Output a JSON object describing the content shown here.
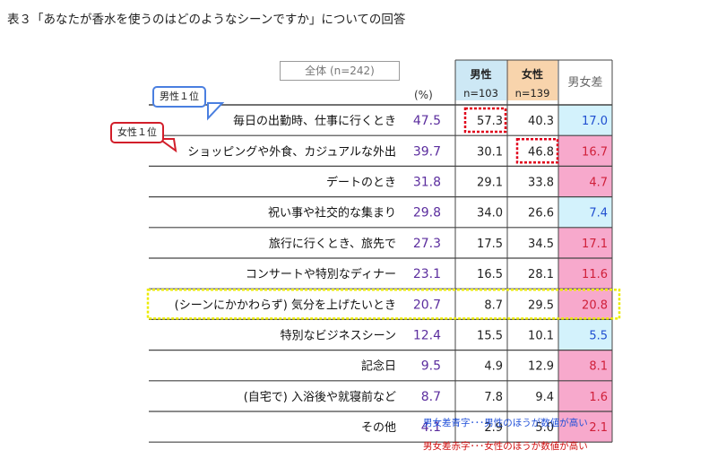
{
  "title": "表３「あなたが香水を使うのはどのようなシーンですか」についての回答",
  "overall_label": "全体 (n=242)",
  "pct_unit": "(%)",
  "headers": {
    "male": {
      "label": "男性",
      "n": "n=103"
    },
    "female": {
      "label": "女性",
      "n": "n=139"
    },
    "diff": {
      "label": "男女差"
    }
  },
  "callouts": {
    "male_top": "男性１位",
    "female_top": "女性１位"
  },
  "notes": {
    "blue": "男女差青字･･･男性のほうが数値が高い",
    "red": "男女差赤字･･･女性のほうが数値が高い"
  },
  "colors": {
    "male_header": "#cde8f5",
    "female_header": "#f8d4ac",
    "diff_male_bg": "#d3f2fc",
    "diff_female_bg": "#f7a9cc",
    "overall_text": "#5b2d9e",
    "highlight_dotted_red": "#e0001a",
    "highlight_dotted_yellow": "#ecec00"
  },
  "chart_data": {
    "type": "table",
    "columns": [
      "全体",
      "男性",
      "女性",
      "男女差"
    ],
    "rows": [
      {
        "label": "毎日の出勤時、仕事に行くとき",
        "overall": "47.5",
        "male": "57.3",
        "female": "40.3",
        "diff": "17.0",
        "diff_dir": "male"
      },
      {
        "label": "ショッピングや外食、カジュアルな外出",
        "overall": "39.7",
        "male": "30.1",
        "female": "46.8",
        "diff": "16.7",
        "diff_dir": "female"
      },
      {
        "label": "デートのとき",
        "overall": "31.8",
        "male": "29.1",
        "female": "33.8",
        "diff": "4.7",
        "diff_dir": "female"
      },
      {
        "label": "祝い事や社交的な集まり",
        "overall": "29.8",
        "male": "34.0",
        "female": "26.6",
        "diff": "7.4",
        "diff_dir": "male"
      },
      {
        "label": "旅行に行くとき、旅先で",
        "overall": "27.3",
        "male": "17.5",
        "female": "34.5",
        "diff": "17.1",
        "diff_dir": "female"
      },
      {
        "label": "コンサートや特別なディナー",
        "overall": "23.1",
        "male": "16.5",
        "female": "28.1",
        "diff": "11.6",
        "diff_dir": "female"
      },
      {
        "label": "(シーンにかかわらず) 気分を上げたいとき",
        "overall": "20.7",
        "male": "8.7",
        "female": "29.5",
        "diff": "20.8",
        "diff_dir": "female"
      },
      {
        "label": "特別なビジネスシーン",
        "overall": "12.4",
        "male": "15.5",
        "female": "10.1",
        "diff": "5.5",
        "diff_dir": "male"
      },
      {
        "label": "記念日",
        "overall": "9.5",
        "male": "4.9",
        "female": "12.9",
        "diff": "8.1",
        "diff_dir": "female"
      },
      {
        "label": "(自宅で) 入浴後や就寝前など",
        "overall": "8.7",
        "male": "7.8",
        "female": "9.4",
        "diff": "1.6",
        "diff_dir": "female"
      },
      {
        "label": "その他",
        "overall": "4.1",
        "male": "2.9",
        "female": "5.0",
        "diff": "2.1",
        "diff_dir": "female"
      }
    ]
  }
}
